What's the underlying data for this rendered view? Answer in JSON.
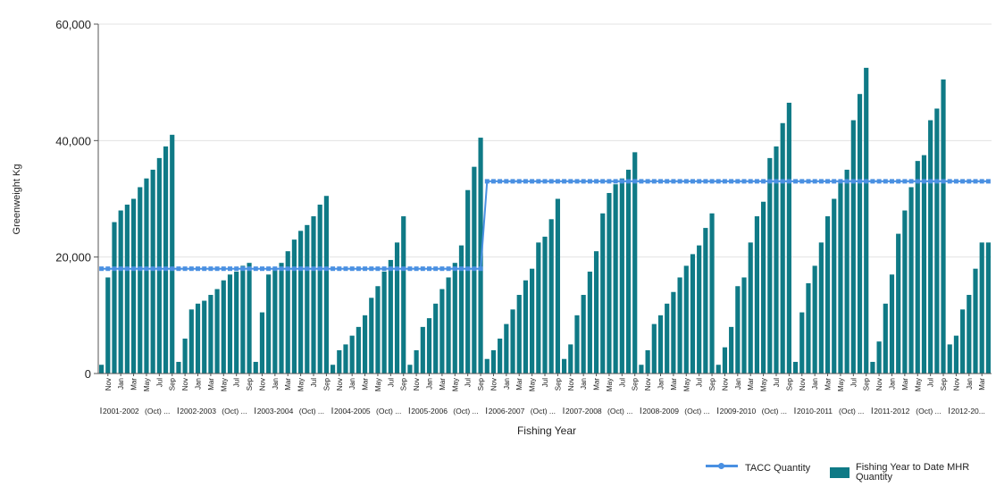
{
  "chart_data": {
    "type": "bar",
    "title": "",
    "xlabel": "Fishing Year",
    "ylabel": "Greenweight Kg",
    "ylim": [
      0,
      60000
    ],
    "yticks": [
      "0",
      "20,000",
      "40,000",
      "60,000"
    ],
    "grid": true,
    "legend_position": "bottom-right",
    "colors": {
      "bars": "#0f7a86",
      "line": "#4a90e2",
      "grid": "#e3e3e3"
    },
    "series": [
      {
        "name": "Fishing Year to Date MHR Quantity",
        "type": "bar",
        "values": [
          1500,
          16500,
          26000,
          28000,
          29000,
          30000,
          32000,
          33500,
          35000,
          37000,
          39000,
          41000,
          2000,
          6000,
          11000,
          12000,
          12500,
          13500,
          14500,
          16000,
          17000,
          17500,
          18500,
          19000,
          2000,
          10500,
          17000,
          18000,
          19000,
          21000,
          23000,
          24500,
          25500,
          27000,
          29000,
          30500,
          1500,
          4000,
          5000,
          6500,
          8000,
          10000,
          13000,
          15000,
          17500,
          19500,
          22500,
          27000,
          1500,
          4000,
          8000,
          9500,
          12000,
          14500,
          16500,
          19000,
          22000,
          31500,
          35500,
          40500,
          2500,
          4000,
          6000,
          8500,
          11000,
          13500,
          16000,
          18000,
          22500,
          23500,
          26500,
          30000,
          2500,
          5000,
          10000,
          13500,
          17500,
          21000,
          27500,
          31000,
          32500,
          33500,
          35000,
          38000,
          1500,
          4000,
          8500,
          10000,
          12000,
          14000,
          16500,
          18500,
          20500,
          22000,
          25000,
          27500,
          1500,
          4500,
          8000,
          15000,
          16500,
          22500,
          27000,
          29500,
          37000,
          39000,
          43000,
          46500,
          2000,
          10500,
          15500,
          18500,
          22500,
          27000,
          30000,
          33000,
          35000,
          43500,
          48000,
          52500,
          2000,
          5500,
          12000,
          17000,
          24000,
          28000,
          32000,
          36500,
          37500,
          43500,
          45500,
          50500,
          5000,
          6500,
          11000,
          13500,
          18000,
          22500,
          22500
        ]
      },
      {
        "name": "TACC Quantity",
        "type": "line",
        "segments": [
          {
            "from_index": 0,
            "to_index": 59,
            "value": 18000
          },
          {
            "from_index": 60,
            "to_index": 138,
            "value": 33000
          }
        ]
      }
    ],
    "month_tick_labels": [
      "Nov",
      "Jan",
      "Mar",
      "May",
      "Jul",
      "Sep"
    ],
    "year_groups": [
      {
        "label": "2001-2002",
        "mid": "(Oct)"
      },
      {
        "label": "2002-2003",
        "mid": "(Oct)"
      },
      {
        "label": "2003-2004",
        "mid": "(Oct)"
      },
      {
        "label": "2004-2005",
        "mid": "(Oct)"
      },
      {
        "label": "2005-2006",
        "mid": "(Oct)"
      },
      {
        "label": "2006-2007",
        "mid": "(Oct)"
      },
      {
        "label": "2007-2008",
        "mid": "(Oct)"
      },
      {
        "label": "2008-2009",
        "mid": "(Oct)"
      },
      {
        "label": "2009-2010",
        "mid": "(Oct)"
      },
      {
        "label": "2010-2011",
        "mid": "(Oct)"
      },
      {
        "label": "2011-2012",
        "mid": "(Oct)"
      },
      {
        "label": "2012-20...",
        "mid": ""
      }
    ]
  },
  "legend": {
    "line_label": "TACC Quantity",
    "bar_label": "Fishing Year to Date MHR Quantity"
  }
}
